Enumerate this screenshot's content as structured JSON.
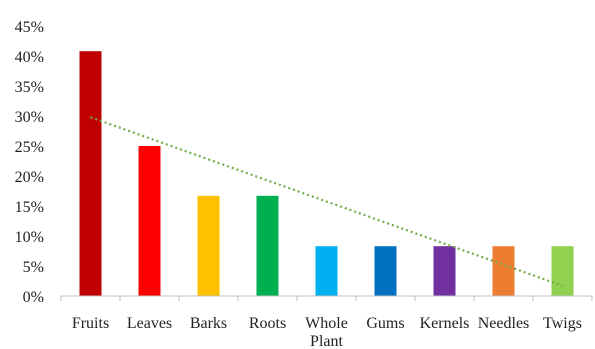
{
  "chart_data": {
    "type": "bar",
    "title": "",
    "xlabel": "",
    "ylabel": "",
    "categories": [
      [
        "Fruits"
      ],
      [
        "Leaves"
      ],
      [
        "Barks"
      ],
      [
        "Roots"
      ],
      [
        "Whole",
        "Plant"
      ],
      [
        "Gums"
      ],
      [
        "Kernels"
      ],
      [
        "Needles"
      ],
      [
        "Twigs"
      ]
    ],
    "values": [
      0.408,
      0.25,
      0.167,
      0.167,
      0.083,
      0.083,
      0.083,
      0.083,
      0.083
    ],
    "colors": [
      "#C00000",
      "#FF0000",
      "#FFC000",
      "#00B050",
      "#00B0F0",
      "#0070C0",
      "#7030A0",
      "#ED7D31",
      "#92D050"
    ],
    "ylim": [
      0,
      0.45
    ],
    "yticks": [
      0,
      0.05,
      0.1,
      0.15,
      0.2,
      0.25,
      0.3,
      0.35,
      0.4,
      0.45
    ],
    "ytick_labels": [
      "0%",
      "5%",
      "10%",
      "15%",
      "20%",
      "25%",
      "30%",
      "35%",
      "40%",
      "45%"
    ],
    "grid": false,
    "legend": "none",
    "trendline": {
      "type": "linear",
      "style": "dotted",
      "color": "#70AD47",
      "start_value": 0.298,
      "end_value": 0.017
    }
  }
}
